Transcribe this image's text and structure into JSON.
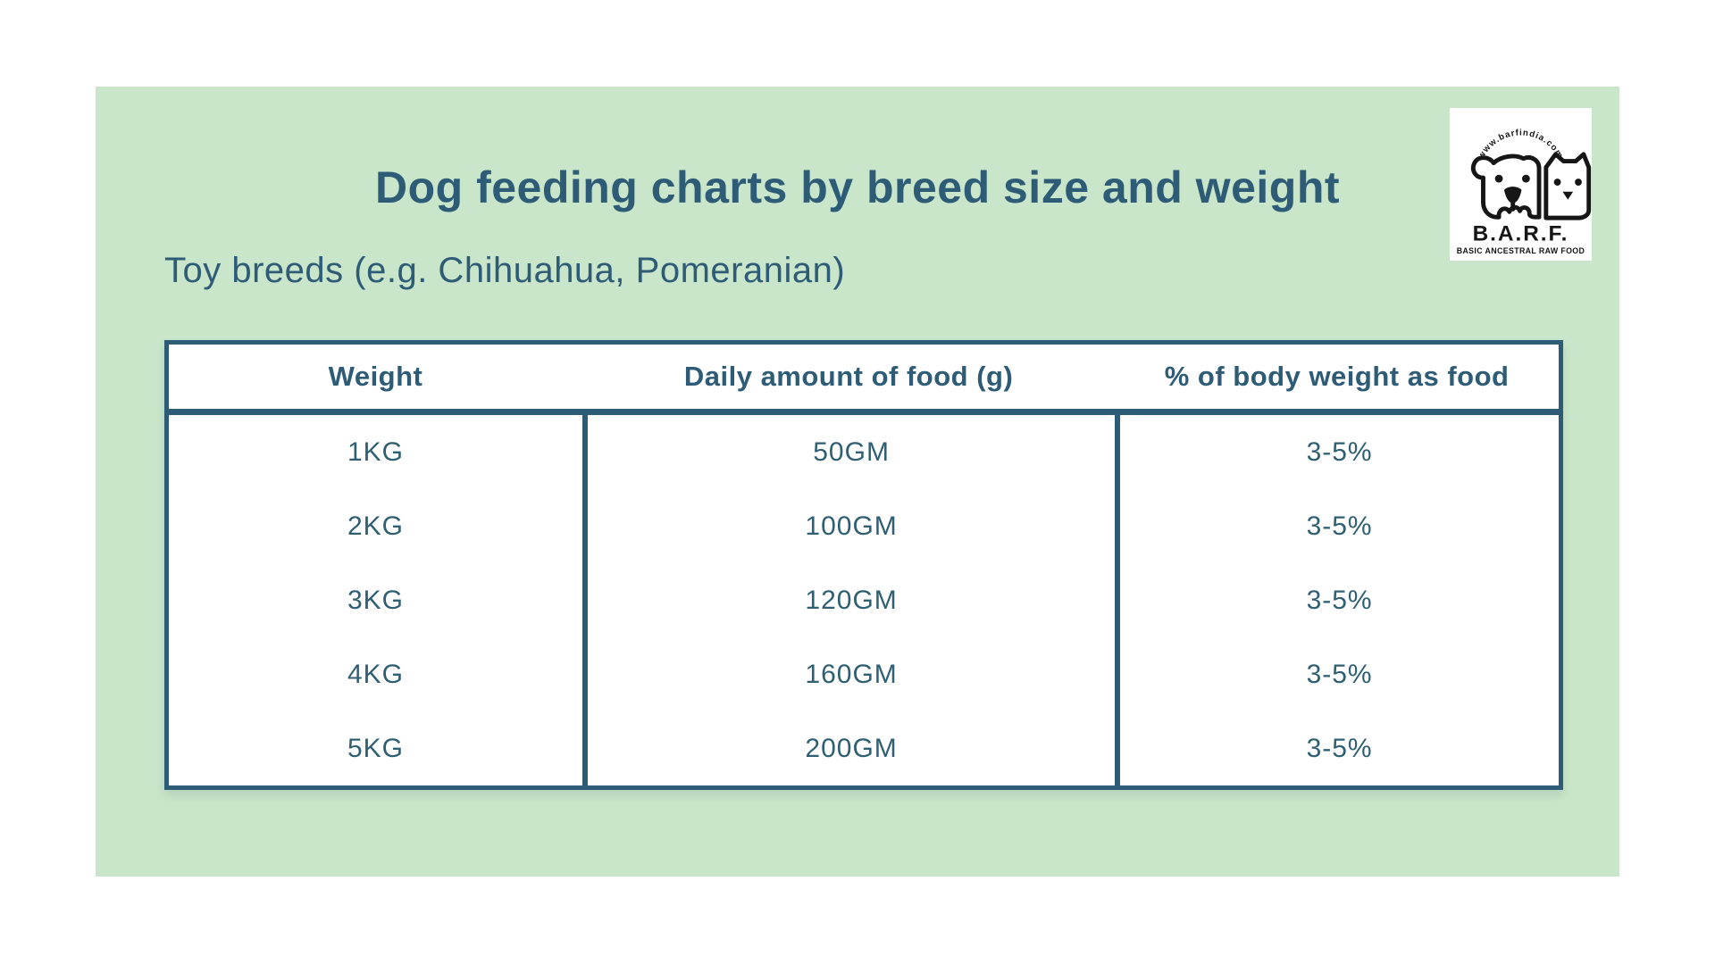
{
  "header": {
    "title": "Dog feeding charts by breed size and weight",
    "subtitle": "Toy breeds (e.g. Chihuahua, Pomeranian)"
  },
  "logo": {
    "arc_text": "www.barfindia.com",
    "brand": "B.A.R.F.",
    "tagline": "BASIC ANCESTRAL RAW FOOD"
  },
  "chart_data": {
    "type": "table",
    "title": "Dog feeding charts by breed size and weight",
    "section": "Toy breeds (e.g. Chihuahua, Pomeranian)",
    "columns": [
      "Weight",
      "Daily amount of food (g)",
      "% of body weight as food"
    ],
    "rows": [
      [
        "1KG",
        "50GM",
        "3-5%"
      ],
      [
        "2KG",
        "100GM",
        "3-5%"
      ],
      [
        "3KG",
        "120GM",
        "3-5%"
      ],
      [
        "4KG",
        "160GM",
        "3-5%"
      ],
      [
        "5KG",
        "200GM",
        "3-5%"
      ]
    ]
  },
  "colors": {
    "page_background": "#ffffff",
    "card_background": "#c9e6ca",
    "accent_teal": "#2e5c77",
    "cell_text": "#2f5f73",
    "logo_ink": "#161616"
  }
}
